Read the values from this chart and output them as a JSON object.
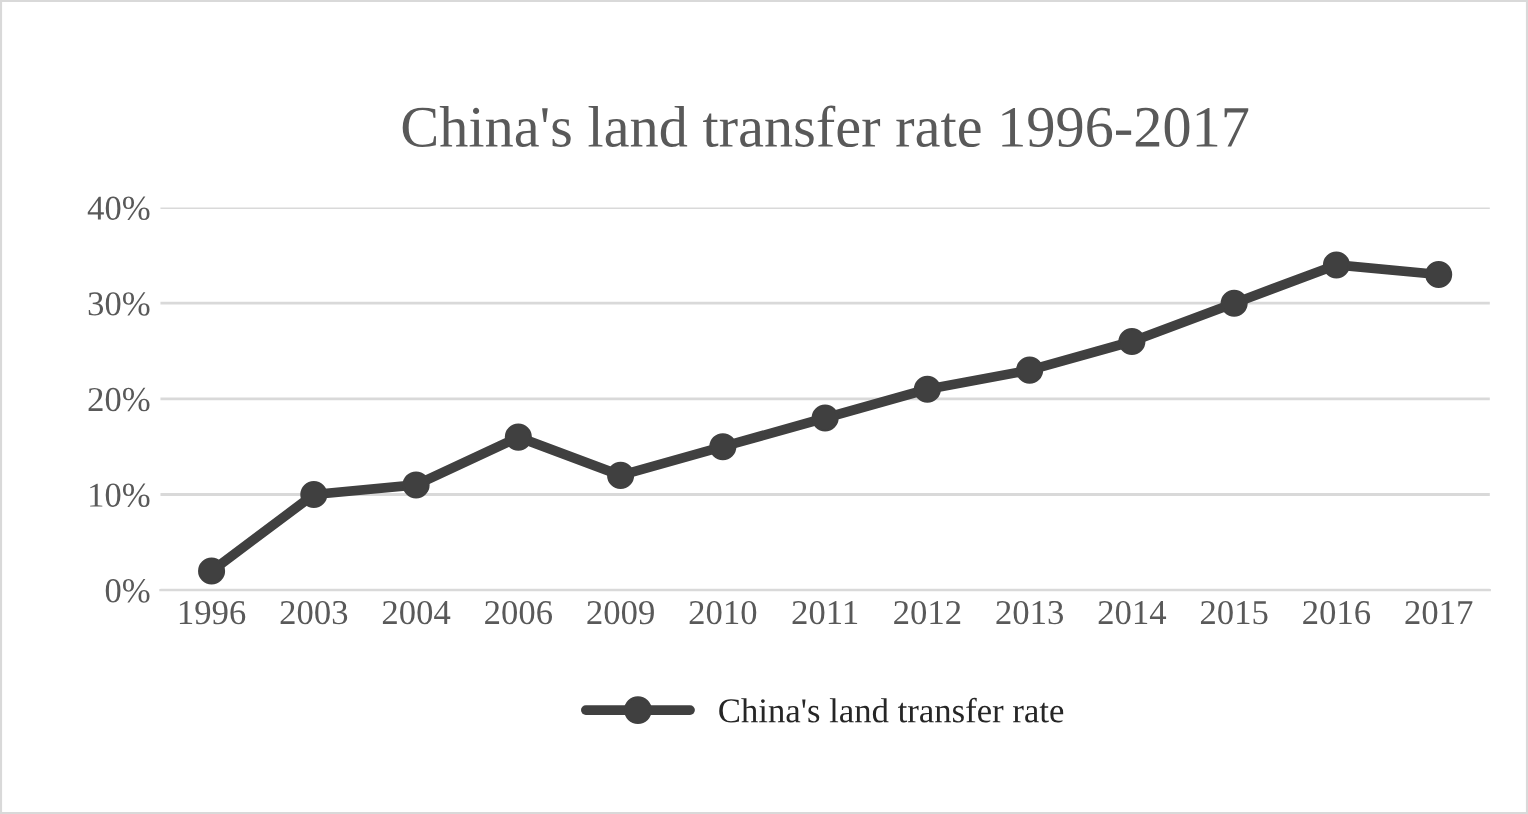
{
  "chart_data": {
    "type": "line",
    "title": "China's land transfer rate 1996-2017",
    "categories": [
      "1996",
      "2003",
      "2004",
      "2006",
      "2009",
      "2010",
      "2011",
      "2012",
      "2013",
      "2014",
      "2015",
      "2016",
      "2017"
    ],
    "series": [
      {
        "name": "China's land transfer rate",
        "color": "#404040",
        "values": [
          2,
          10,
          11,
          16,
          12,
          15,
          18,
          21,
          23,
          26,
          30,
          34,
          33
        ]
      }
    ],
    "ylim": [
      0,
      40
    ],
    "yticks": [
      {
        "value": 0,
        "label": "0%"
      },
      {
        "value": 10,
        "label": "10%"
      },
      {
        "value": 20,
        "label": "20%"
      },
      {
        "value": 30,
        "label": "30%"
      },
      {
        "value": 40,
        "label": "40%"
      }
    ],
    "grid": "y",
    "legend": "bottom",
    "marker": "circle",
    "line_style": "solid"
  }
}
